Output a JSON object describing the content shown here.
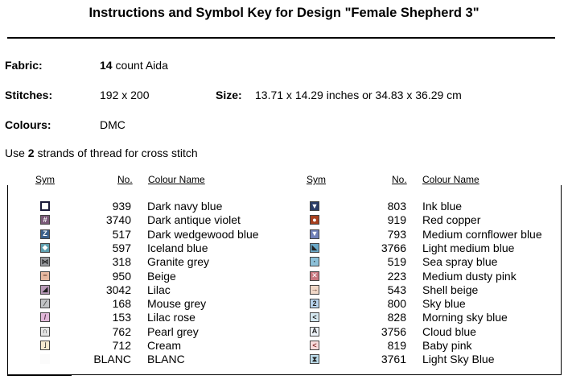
{
  "title": "Instructions and Symbol Key for Design \"Female Shepherd 3\"",
  "fabric": {
    "label": "Fabric:",
    "count": "14",
    "rest": " count Aida"
  },
  "stitches": {
    "label": "Stitches:",
    "value": "192 x 200"
  },
  "size": {
    "label": "Size:",
    "value": "13.71 x 14.29 inches or 34.83 x 36.29 cm"
  },
  "colours": {
    "label": "Colours:",
    "value": "DMC"
  },
  "use": {
    "pre": "Use ",
    "n": "2",
    "post": " strands of thread for cross stitch"
  },
  "headers": {
    "sym": "Sym",
    "no": "No.",
    "name": "Colour Name"
  },
  "left": [
    {
      "no": "939",
      "name": "Dark navy blue",
      "bg": "#ffffff",
      "fg": "#1a1a3a",
      "glyph": "",
      "icon": "open-square-icon"
    },
    {
      "no": "3740",
      "name": "Dark antique violet",
      "bg": "#7a5a78",
      "fg": "#ffffff",
      "glyph": "#",
      "icon": "hash-icon"
    },
    {
      "no": "517",
      "name": "Dark wedgewood blue",
      "bg": "#3a5f8a",
      "fg": "#ffffff",
      "glyph": "Z",
      "icon": "z-icon"
    },
    {
      "no": "597",
      "name": "Iceland blue",
      "bg": "#5fa0b0",
      "fg": "#ffffff",
      "glyph": "◆",
      "icon": "diamond-icon"
    },
    {
      "no": "318",
      "name": "Granite grey",
      "bg": "#9a9ca0",
      "fg": "#222222",
      "glyph": "⋈",
      "icon": "bowtie-icon"
    },
    {
      "no": "950",
      "name": "Beige",
      "bg": "#e6b8a0",
      "fg": "#5a3020",
      "glyph": "−",
      "icon": "minus-icon"
    },
    {
      "no": "3042",
      "name": "Lilac",
      "bg": "#b89ab8",
      "fg": "#222222",
      "glyph": "◢",
      "icon": "triangle-corner-icon"
    },
    {
      "no": "168",
      "name": "Mouse grey",
      "bg": "#c0c2c4",
      "fg": "#444444",
      "glyph": "⁄",
      "icon": "slash-icon"
    },
    {
      "no": "153",
      "name": "Lilac rose",
      "bg": "#e0b8d8",
      "fg": "#5a3050",
      "glyph": "/",
      "icon": "slash-icon"
    },
    {
      "no": "762",
      "name": "Pearl grey",
      "bg": "#e4e4e4",
      "fg": "#222222",
      "glyph": "∩",
      "icon": "arch-icon"
    },
    {
      "no": "712",
      "name": "Cream",
      "bg": "#f6ead0",
      "fg": "#222222",
      "glyph": "˩",
      "icon": "corner-icon"
    },
    {
      "no": "BLANC",
      "name": "BLANC",
      "bg": "#fbfbfb",
      "fg": "#fbfbfb",
      "glyph": "",
      "icon": "blank-icon"
    }
  ],
  "right": [
    {
      "no": "803",
      "name": "Ink blue",
      "bg": "#2a3c66",
      "fg": "#ffffff",
      "glyph": "▼",
      "icon": "down-triangle-icon"
    },
    {
      "no": "919",
      "name": "Red copper",
      "bg": "#a8401e",
      "fg": "#ffffff",
      "glyph": "●",
      "icon": "circle-icon"
    },
    {
      "no": "793",
      "name": "Medium cornflower blue",
      "bg": "#7080b8",
      "fg": "#ffffff",
      "glyph": "▼",
      "icon": "down-triangle-icon"
    },
    {
      "no": "3766",
      "name": "Light medium blue",
      "bg": "#6aa8c8",
      "fg": "#222222",
      "glyph": "◣",
      "icon": "triangle-corner-icon"
    },
    {
      "no": "519",
      "name": "Sea spray blue",
      "bg": "#8cc0d8",
      "fg": "#222222",
      "glyph": "·",
      "icon": "dot-icon"
    },
    {
      "no": "223",
      "name": "Medium dusty pink",
      "bg": "#c87880",
      "fg": "#ffffff",
      "glyph": "✕",
      "icon": "cross-icon"
    },
    {
      "no": "543",
      "name": "Shell beige",
      "bg": "#f0d8c8",
      "fg": "#5a3020",
      "glyph": "→",
      "icon": "arrow-right-icon"
    },
    {
      "no": "800",
      "name": "Sky blue",
      "bg": "#b8d4ee",
      "fg": "#222222",
      "glyph": "2",
      "icon": "two-icon"
    },
    {
      "no": "828",
      "name": "Morning sky blue",
      "bg": "#d4e8f0",
      "fg": "#222222",
      "glyph": "<",
      "icon": "less-than-icon"
    },
    {
      "no": "3756",
      "name": "Cloud blue",
      "bg": "#eef4fa",
      "fg": "#222222",
      "glyph": "A",
      "icon": "letter-a-icon"
    },
    {
      "no": "819",
      "name": "Baby pink",
      "bg": "#f8dcdc",
      "fg": "#8a3030",
      "glyph": "<",
      "icon": "less-than-icon"
    },
    {
      "no": "3761",
      "name": "Light Sky Blue",
      "bg": "#bcdceb",
      "fg": "#222222",
      "glyph": "⧗",
      "icon": "hourglass-icon"
    }
  ]
}
